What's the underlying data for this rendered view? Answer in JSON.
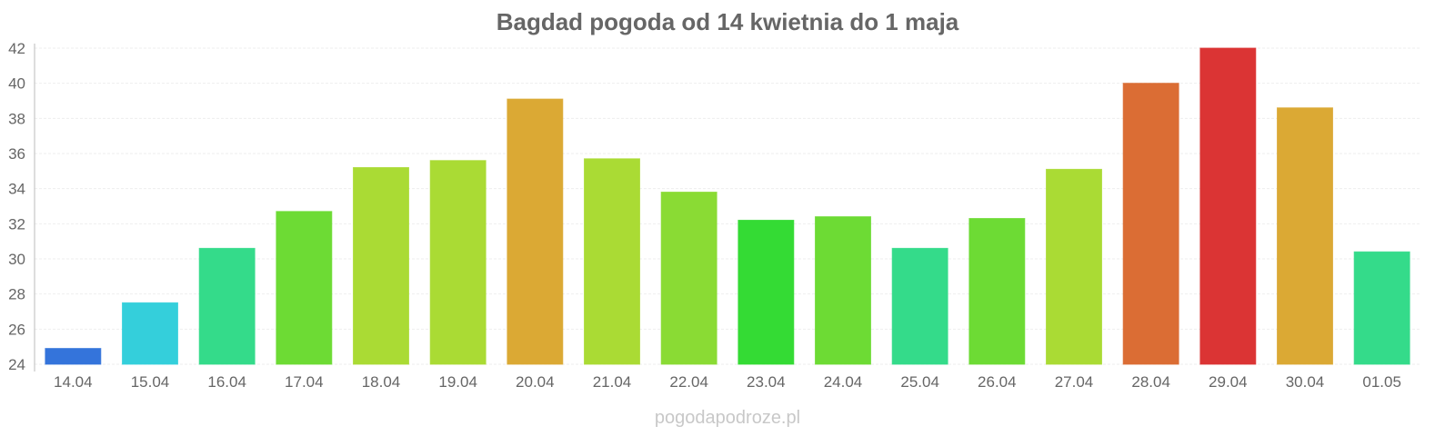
{
  "chart_data": {
    "type": "bar",
    "title": "Bagdad pogoda od 14 kwietnia do 1 maja",
    "xlabel": "",
    "ylabel": "",
    "ylim": [
      24,
      42
    ],
    "yticks": [
      "24",
      "26",
      "28",
      "30",
      "32",
      "34",
      "36",
      "38",
      "40",
      "42"
    ],
    "grid": true,
    "categories": [
      "14.04",
      "15.04",
      "16.04",
      "17.04",
      "18.04",
      "19.04",
      "20.04",
      "21.04",
      "22.04",
      "23.04",
      "24.04",
      "25.04",
      "26.04",
      "27.04",
      "28.04",
      "29.04",
      "30.04",
      "01.05"
    ],
    "values": [
      24.9,
      27.5,
      30.6,
      32.7,
      35.2,
      35.6,
      39.1,
      35.7,
      33.8,
      32.2,
      32.4,
      30.6,
      32.3,
      35.1,
      40.0,
      42.0,
      38.6,
      30.4
    ],
    "colors": [
      "#3474db",
      "#34cfdb",
      "#34db8a",
      "#6ddb34",
      "#aadb34",
      "#aadb34",
      "#dba934",
      "#aadb34",
      "#8adb34",
      "#34db34",
      "#6ddb34",
      "#34db8a",
      "#6ddb34",
      "#aadb34",
      "#db6d34",
      "#db3434",
      "#dba934",
      "#34db8a"
    ]
  },
  "watermark": "pogodapodroze.pl"
}
